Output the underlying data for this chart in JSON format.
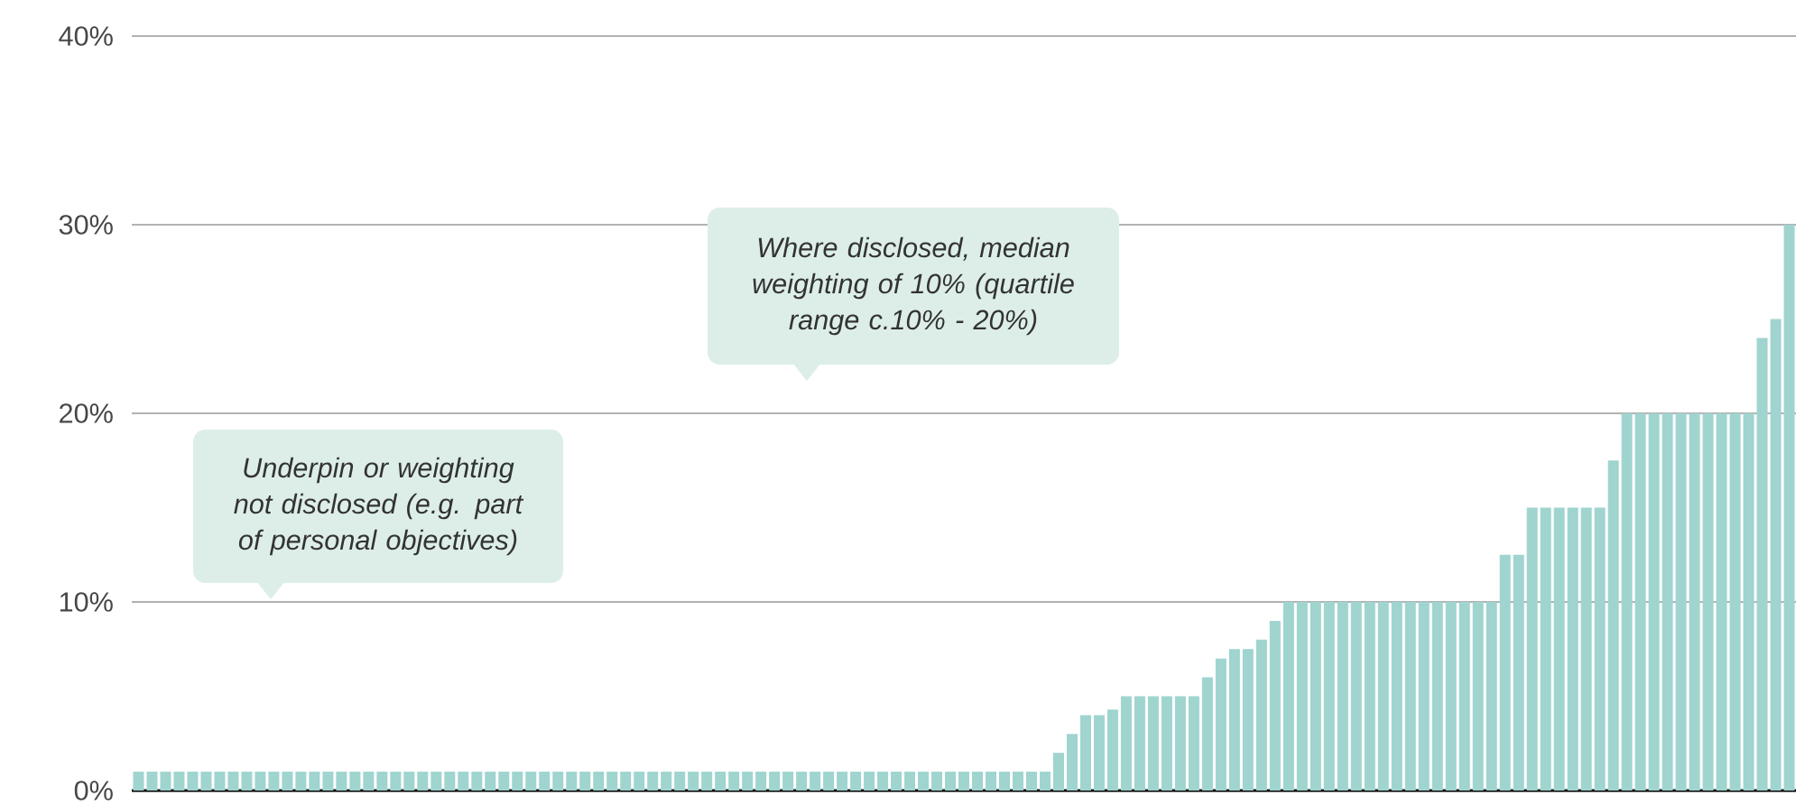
{
  "chart_data": {
    "type": "bar",
    "categories": [
      null,
      null,
      null,
      null,
      null,
      null,
      null,
      null,
      null,
      null,
      null,
      null,
      null,
      null,
      null,
      null,
      null,
      null,
      null,
      null,
      null,
      null,
      null,
      null,
      null,
      null,
      null,
      null,
      null,
      null,
      null,
      null,
      null,
      null,
      null,
      null,
      null,
      null,
      null,
      null,
      null,
      null,
      null,
      null,
      null,
      null,
      null,
      null,
      null,
      null,
      null,
      null,
      null,
      null,
      null,
      null,
      null,
      null,
      null,
      null,
      null,
      null,
      null,
      null,
      null,
      null,
      null,
      null,
      null,
      null,
      null,
      null,
      null,
      null,
      null,
      null,
      null,
      null,
      null,
      null,
      null,
      null,
      null,
      null,
      null,
      null,
      null,
      null,
      null,
      null,
      null,
      null,
      null,
      null,
      null,
      null,
      null,
      null,
      null,
      null,
      null,
      null,
      null,
      null,
      null,
      null,
      null,
      null,
      null,
      null,
      null,
      null,
      null,
      null,
      null,
      null,
      null,
      null,
      null,
      null,
      null,
      null,
      null
    ],
    "values": [
      1,
      1,
      1,
      1,
      1,
      1,
      1,
      1,
      1,
      1,
      1,
      1,
      1,
      1,
      1,
      1,
      1,
      1,
      1,
      1,
      1,
      1,
      1,
      1,
      1,
      1,
      1,
      1,
      1,
      1,
      1,
      1,
      1,
      1,
      1,
      1,
      1,
      1,
      1,
      1,
      1,
      1,
      1,
      1,
      1,
      1,
      1,
      1,
      1,
      1,
      1,
      1,
      1,
      1,
      1,
      1,
      1,
      1,
      1,
      1,
      1,
      1,
      1,
      1,
      1,
      1,
      1,
      1,
      2,
      3,
      4,
      4,
      4.3,
      5,
      5,
      5,
      5,
      5,
      5,
      6,
      7,
      7.5,
      7.5,
      8,
      9,
      10,
      10,
      10,
      10,
      10,
      10,
      10,
      10,
      10,
      10,
      10,
      10,
      10,
      10,
      10,
      10,
      12.5,
      12.5,
      15,
      15,
      15,
      15,
      15,
      15,
      17.5,
      20,
      20,
      20,
      20,
      20,
      20,
      20,
      20,
      20,
      20,
      24,
      25,
      30
    ],
    "color": "#9fd4cf",
    "ylim": [
      0,
      40
    ],
    "yticks": [
      {
        "value": 0,
        "label": "0%"
      },
      {
        "value": 10,
        "label": "10%"
      },
      {
        "value": 20,
        "label": "20%"
      },
      {
        "value": 30,
        "label": "30%"
      },
      {
        "value": 40,
        "label": "40%"
      }
    ],
    "grid": "y",
    "annotations": [
      "Underpin or weighting not disclosed (e.g. part of personal objectives)",
      "Where disclosed, median weighting of 10% (quartile range c.10% - 20%)"
    ]
  }
}
